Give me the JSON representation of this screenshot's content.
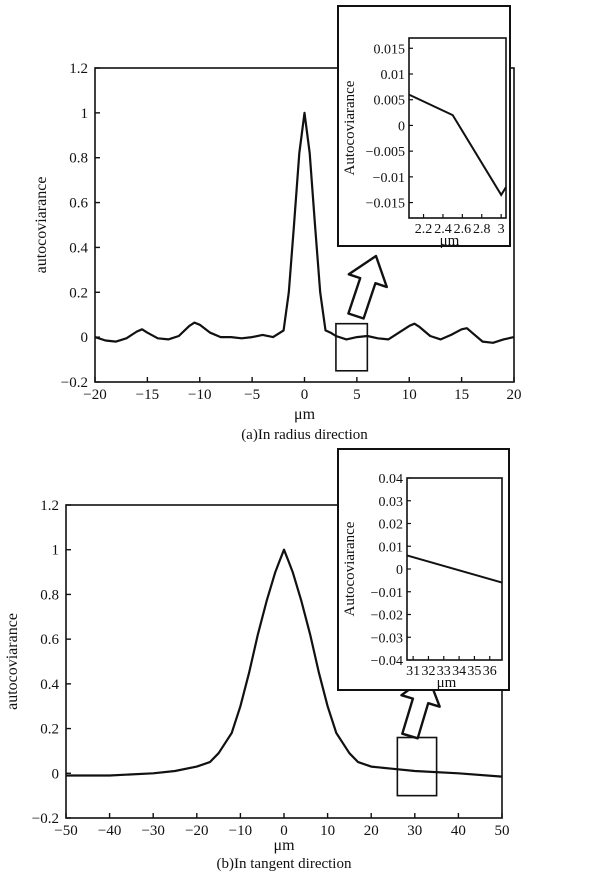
{
  "chart_data": [
    {
      "type": "line",
      "caption": "(a)In radius direction",
      "xlabel": "μm",
      "ylabel": "autocoviarance",
      "xlim": [
        -20,
        20
      ],
      "ylim": [
        -0.2,
        1.2
      ],
      "xticks": [
        -20,
        -15,
        -10,
        -5,
        0,
        5,
        10,
        15,
        20
      ],
      "yticks": [
        -0.2,
        0,
        0.2,
        0.4,
        0.6,
        0.8,
        1,
        1.2
      ],
      "series": [
        {
          "x": [
            -20,
            -19,
            -18,
            -17,
            -16,
            -15.5,
            -15,
            -14,
            -13,
            -12,
            -11,
            -10.5,
            -10,
            -9,
            -8,
            -7,
            -6,
            -5,
            -4,
            -3,
            -2,
            -1.5,
            -1,
            -0.5,
            0,
            0.5,
            1,
            1.5,
            2,
            2.5,
            3,
            4,
            5,
            6,
            7,
            8,
            9,
            10,
            10.5,
            11,
            12,
            13,
            14,
            15,
            15.5,
            16,
            17,
            18,
            19,
            20
          ],
          "y": [
            0.0,
            -0.015,
            -0.02,
            -0.005,
            0.025,
            0.035,
            0.02,
            -0.005,
            -0.01,
            0.005,
            0.05,
            0.065,
            0.055,
            0.02,
            0.0,
            0.0,
            -0.005,
            0.0,
            0.01,
            0.0,
            0.03,
            0.2,
            0.5,
            0.82,
            1.0,
            0.82,
            0.5,
            0.2,
            0.03,
            0.02,
            0.005,
            -0.01,
            0.0,
            0.005,
            -0.005,
            -0.01,
            0.02,
            0.05,
            0.06,
            0.045,
            0.005,
            -0.01,
            0.01,
            0.035,
            0.04,
            0.02,
            -0.02,
            -0.025,
            -0.01,
            0.0
          ]
        }
      ],
      "zoom_box": {
        "x": [
          3,
          6
        ],
        "y": [
          -0.15,
          0.06
        ]
      },
      "inset": {
        "ylabel": "Autocoviarance",
        "xlabel": "μm",
        "xlim": [
          2.05,
          3.05
        ],
        "ylim": [
          -0.018,
          0.017
        ],
        "xticks": [
          2.2,
          2.4,
          2.6,
          2.8,
          3
        ],
        "yticks": [
          0.015,
          0.01,
          0.005,
          0,
          -0.005,
          -0.01,
          -0.015
        ],
        "x": [
          2.05,
          2.5,
          3.0,
          3.05
        ],
        "y": [
          0.006,
          0.002,
          -0.0135,
          -0.012
        ]
      }
    },
    {
      "type": "line",
      "caption": "(b)In tangent direction",
      "xlabel": "μm",
      "ylabel": "autocoviarance",
      "xlim": [
        -50,
        50
      ],
      "ylim": [
        -0.2,
        1.2
      ],
      "xticks": [
        -50,
        -40,
        -30,
        -20,
        -10,
        0,
        10,
        20,
        30,
        40,
        50
      ],
      "yticks": [
        -0.2,
        0,
        0.2,
        0.4,
        0.6,
        0.8,
        1,
        1.2
      ],
      "series": [
        {
          "x": [
            -50,
            -40,
            -30,
            -25,
            -20,
            -17,
            -15,
            -12,
            -10,
            -8,
            -6,
            -4,
            -2,
            -1,
            0,
            1,
            2,
            4,
            6,
            8,
            10,
            12,
            15,
            17,
            20,
            25,
            30,
            40,
            50
          ],
          "y": [
            -0.01,
            -0.01,
            0.0,
            0.01,
            0.03,
            0.05,
            0.09,
            0.18,
            0.3,
            0.45,
            0.62,
            0.77,
            0.9,
            0.95,
            1.0,
            0.95,
            0.9,
            0.77,
            0.62,
            0.45,
            0.3,
            0.18,
            0.09,
            0.05,
            0.03,
            0.02,
            0.01,
            0.0,
            -0.015
          ]
        }
      ],
      "zoom_box": {
        "x": [
          26,
          35
        ],
        "y": [
          -0.1,
          0.16
        ]
      },
      "inset": {
        "ylabel": "Autocoviarance",
        "xlabel": "μm",
        "xlim": [
          30.6,
          36.8
        ],
        "ylim": [
          -0.04,
          0.04
        ],
        "xticks": [
          31,
          32,
          33,
          34,
          35,
          36
        ],
        "yticks": [
          0.04,
          0.03,
          0.02,
          0.01,
          0,
          -0.01,
          -0.02,
          -0.03,
          -0.04
        ],
        "x": [
          30.6,
          36.8
        ],
        "y": [
          0.006,
          -0.006
        ]
      }
    }
  ]
}
